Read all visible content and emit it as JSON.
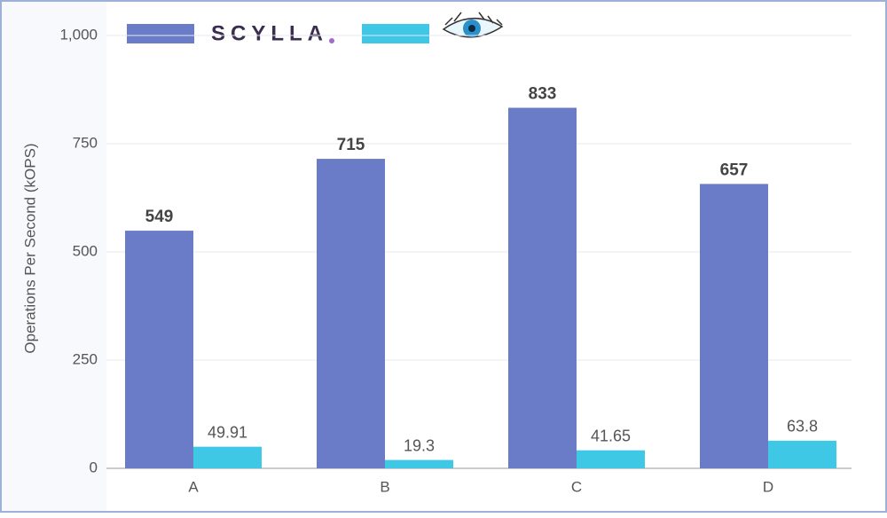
{
  "chart_data": {
    "type": "bar",
    "y_label": "Operations Per Second  (kOPS)",
    "categories": [
      "A",
      "B",
      "C",
      "D"
    ],
    "series": [
      {
        "name": "SCYLLA",
        "color": "#6a7bc8",
        "values": [
          549,
          715,
          833,
          657
        ]
      },
      {
        "color": "#3ec8e6",
        "values": [
          49.91,
          19.3,
          41.65,
          63.8
        ]
      }
    ],
    "ylim": [
      0,
      1000
    ],
    "yticks": [
      0,
      250,
      500,
      750,
      {
        "value": 1000,
        "label": "1,000"
      }
    ],
    "grid": true
  }
}
